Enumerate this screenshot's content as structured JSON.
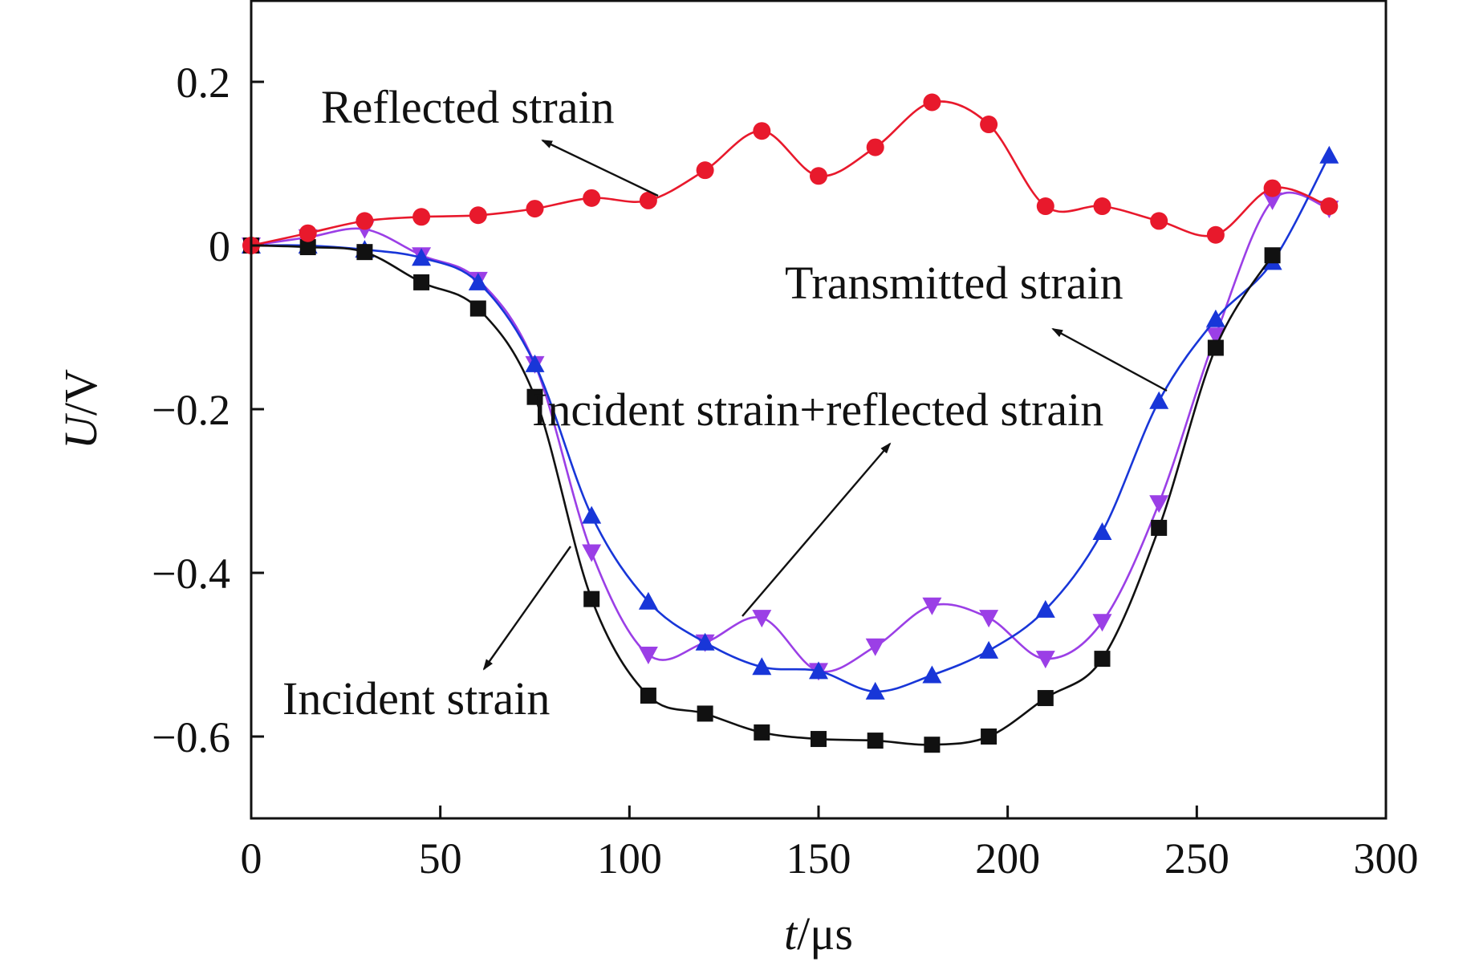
{
  "chart_data": {
    "type": "line",
    "xlabel_var": "t",
    "xlabel_unit": "/μs",
    "ylabel_var": "U",
    "ylabel_unit": "/V",
    "xlim": [
      0,
      300
    ],
    "ylim": [
      -0.7,
      0.3
    ],
    "xticks": [
      0,
      50,
      100,
      150,
      200,
      250,
      300
    ],
    "yticks": [
      0.2,
      0,
      -0.2,
      -0.4,
      -0.6
    ],
    "xtick_labels": [
      "0",
      "50",
      "100",
      "150",
      "200",
      "250",
      "300"
    ],
    "ytick_labels": [
      "0.2",
      "0",
      "−0.2",
      "−0.4",
      "−0.6"
    ],
    "grid": false,
    "series": [
      {
        "name": "Reflected strain",
        "color": "#e8192c",
        "marker": "circle",
        "x": [
          0,
          15,
          30,
          45,
          60,
          75,
          90,
          105,
          120,
          135,
          150,
          165,
          180,
          195,
          210,
          225,
          240,
          255,
          270,
          285
        ],
        "y": [
          0,
          0.015,
          0.03,
          0.035,
          0.037,
          0.045,
          0.058,
          0.055,
          0.092,
          0.14,
          0.085,
          0.12,
          0.175,
          0.148,
          0.048,
          0.048,
          0.03,
          0.013,
          0.07,
          0.048
        ]
      },
      {
        "name": "Incident strain",
        "color": "#111111",
        "marker": "square",
        "x": [
          0,
          15,
          30,
          45,
          60,
          75,
          90,
          105,
          120,
          135,
          150,
          165,
          180,
          195,
          210,
          225,
          240,
          255,
          270
        ],
        "y": [
          0,
          -0.002,
          -0.008,
          -0.045,
          -0.077,
          -0.185,
          -0.432,
          -0.55,
          -0.572,
          -0.595,
          -0.603,
          -0.605,
          -0.61,
          -0.6,
          -0.553,
          -0.505,
          -0.345,
          -0.125,
          -0.012
        ]
      },
      {
        "name": "Transmitted strain",
        "color": "#1836d8",
        "marker": "triangle-up",
        "x": [
          0,
          15,
          30,
          45,
          60,
          75,
          90,
          105,
          120,
          135,
          150,
          165,
          180,
          195,
          210,
          225,
          240,
          255,
          270,
          285
        ],
        "y": [
          0,
          0,
          -0.005,
          -0.015,
          -0.045,
          -0.145,
          -0.33,
          -0.435,
          -0.485,
          -0.515,
          -0.52,
          -0.545,
          -0.525,
          -0.495,
          -0.445,
          -0.35,
          -0.19,
          -0.09,
          -0.02,
          0.11
        ]
      },
      {
        "name": "Incident strain+reflected strain",
        "color": "#9b3fe6",
        "marker": "triangle-down",
        "x": [
          0,
          15,
          30,
          45,
          60,
          75,
          90,
          105,
          120,
          135,
          150,
          165,
          180,
          195,
          210,
          225,
          240,
          255,
          270,
          285
        ],
        "y": [
          0,
          0.01,
          0.02,
          -0.012,
          -0.042,
          -0.145,
          -0.375,
          -0.5,
          -0.485,
          -0.455,
          -0.52,
          -0.49,
          -0.44,
          -0.455,
          -0.505,
          -0.46,
          -0.315,
          -0.11,
          0.055,
          0.045
        ]
      }
    ],
    "annotations": [
      {
        "text": "Reflected strain"
      },
      {
        "text": "Transmitted strain"
      },
      {
        "text": "Incident strain+reflected strain"
      },
      {
        "text": "Incident strain"
      }
    ]
  }
}
